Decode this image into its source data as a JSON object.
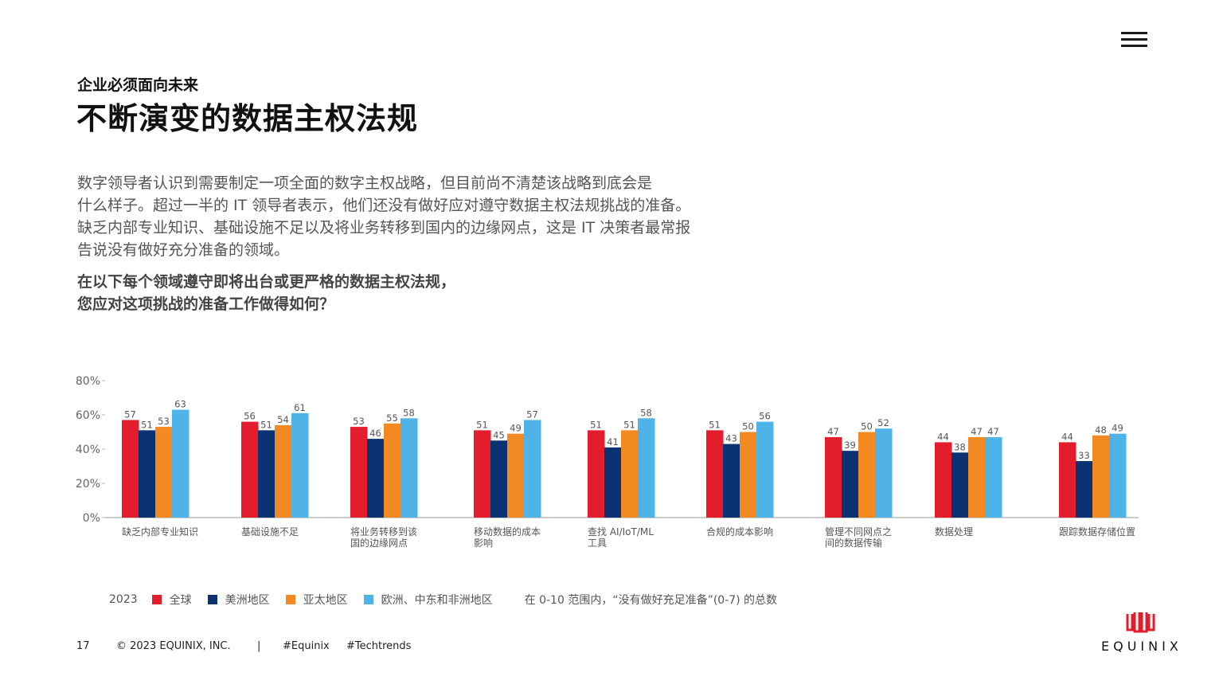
{
  "header": {
    "kicker": "企业必须面向未来",
    "title": "不断演变的数据主权法规"
  },
  "intro_lines": [
    "数字领导者认识到需要制定一项全面的数字主权战略，但目前尚不清楚该战略到底会是",
    "什么样子。超过一半的 IT 领导者表示，他们还没有做好应对遵守数据主权法规挑战的准备。",
    "缺乏内部专业知识、基础设施不足以及将业务转移到国内的边缘网点，这是 IT 决策者最常报",
    "告说没有做好充分准备的领域。"
  ],
  "question_lines": [
    "在以下每个领域遵守即将出台或更严格的数据主权法规，",
    "您应对这项挑战的准备工作做得如何？"
  ],
  "chart_data": {
    "type": "bar",
    "categories": [
      [
        "缺乏内部专业知识"
      ],
      [
        "基础设施不足"
      ],
      [
        "将业务转移到该",
        "国的边缘网点"
      ],
      [
        "移动数据的成本",
        "影响"
      ],
      [
        "查找 AI/IoT/ML",
        "工具"
      ],
      [
        "合规的成本影响"
      ],
      [
        "管理不同网点之",
        "间的数据传输"
      ],
      [
        "数据处理"
      ],
      [
        "跟踪数据存储位置"
      ]
    ],
    "series": [
      {
        "name": "全球",
        "color": "#e31d2b",
        "values": [
          57,
          56,
          53,
          51,
          51,
          51,
          47,
          44,
          44
        ]
      },
      {
        "name": "美洲地区",
        "color": "#0b3272",
        "values": [
          51,
          51,
          46,
          45,
          41,
          43,
          39,
          38,
          33
        ]
      },
      {
        "name": "亚太地区",
        "color": "#f28a21",
        "values": [
          53,
          54,
          55,
          49,
          51,
          50,
          50,
          47,
          48
        ]
      },
      {
        "name": "欧洲、中东和非洲地区",
        "color": "#4fb3e8",
        "values": [
          63,
          61,
          58,
          57,
          58,
          56,
          52,
          47,
          49
        ]
      }
    ],
    "ylim": [
      0,
      80
    ],
    "yticks": [
      "0%",
      "20%",
      "40%",
      "60%",
      "80%"
    ],
    "grid": false
  },
  "legend": {
    "year": "2023",
    "note": "在 0-10 范围内，“没有做好充足准备”(0-7) 的总数"
  },
  "footer": {
    "page": "17",
    "copyright": "© 2023 EQUINIX, INC.",
    "separator": "|",
    "tag1": "#Equinix",
    "tag2": "#Techtrends"
  },
  "brand": {
    "name": "EQUINIX"
  }
}
